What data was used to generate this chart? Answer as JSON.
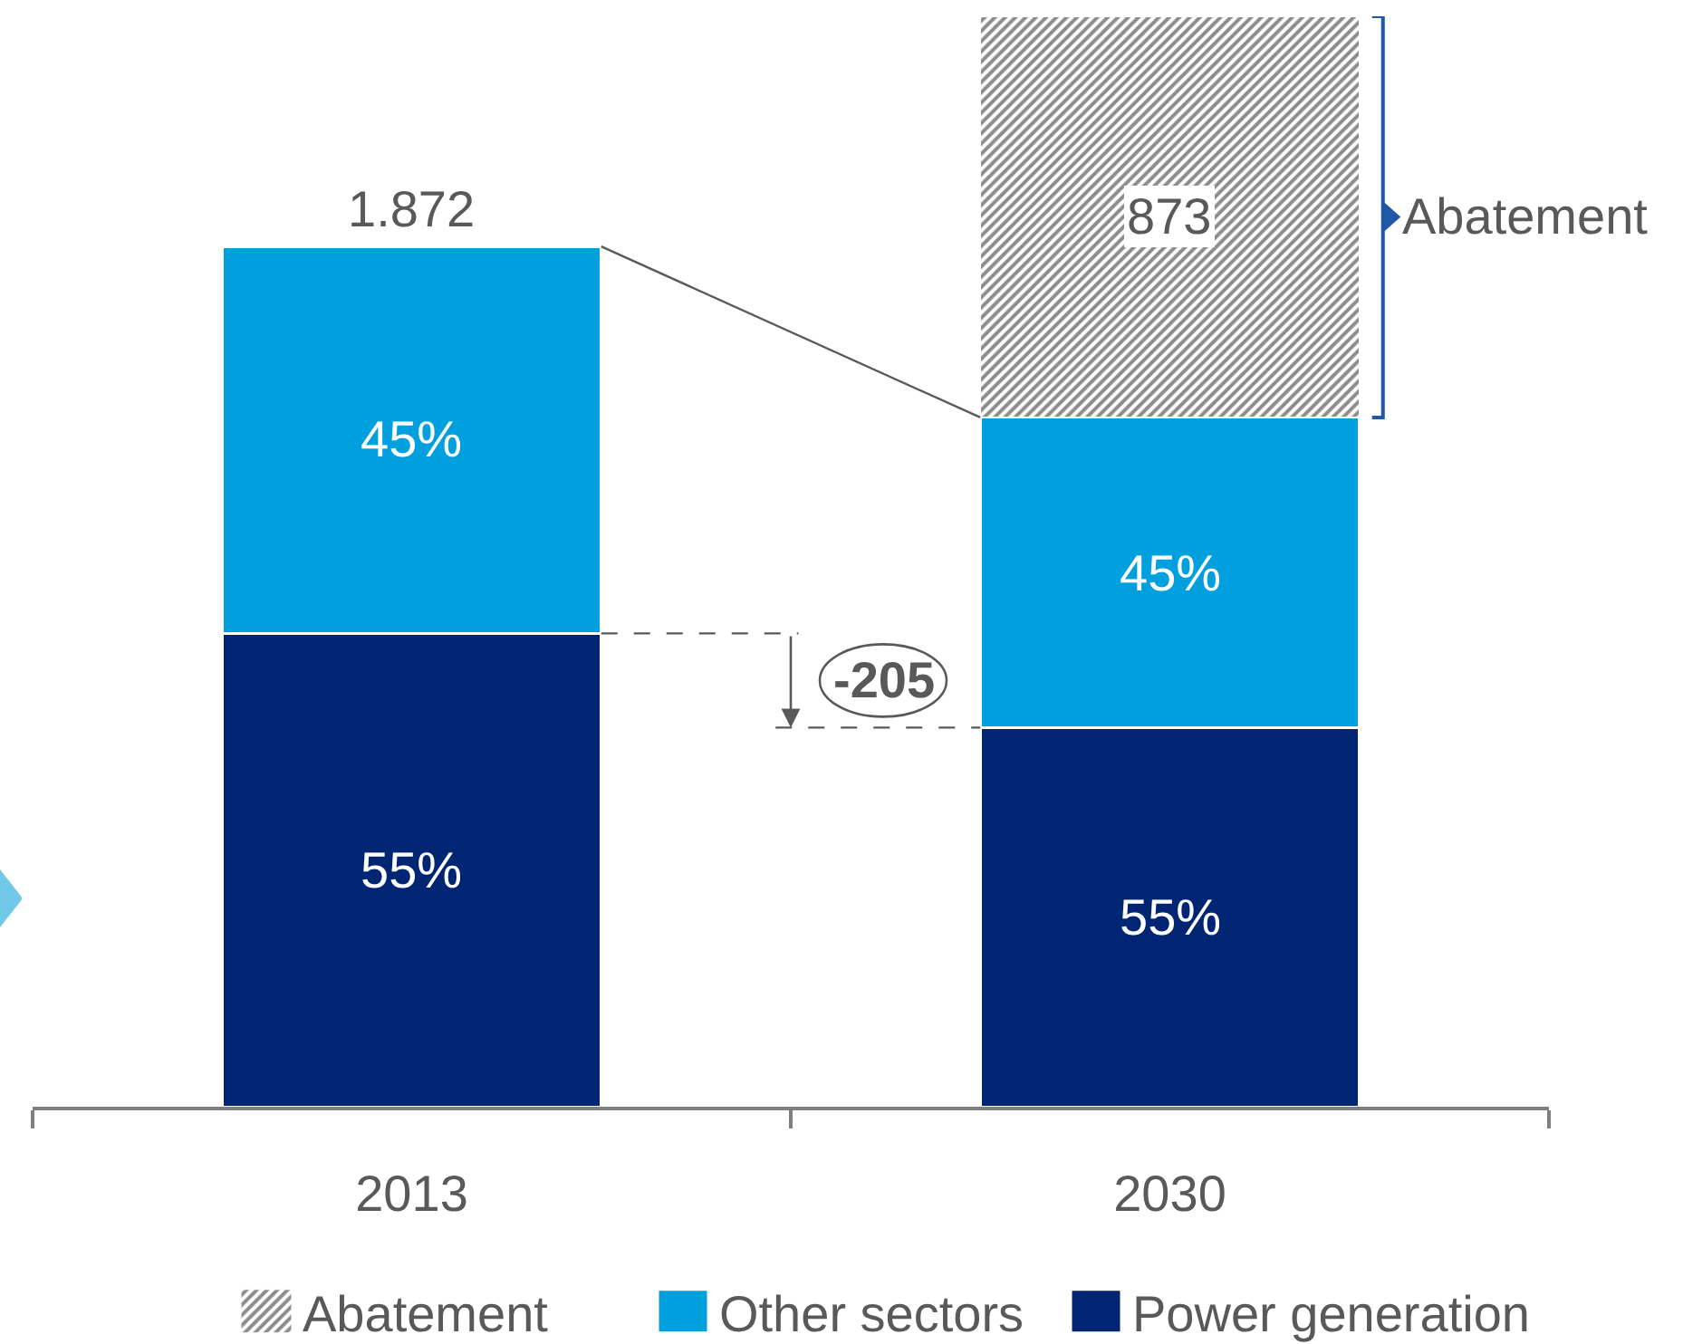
{
  "chart_data": {
    "type": "bar",
    "stacked": true,
    "categories": [
      "2013",
      "2030"
    ],
    "series": [
      {
        "name": "Power generation",
        "color": "#002673",
        "values": [
          1030,
          825
        ]
      },
      {
        "name": "Other sectors",
        "color": "#00a0df",
        "values": [
          842,
          675
        ]
      },
      {
        "name": "Abatement",
        "color": "#ffffff",
        "values": [
          null,
          873
        ],
        "value_labels": [
          null,
          "873"
        ]
      }
    ],
    "totals": [
      "1.872",
      null
    ],
    "annotations": [
      "-205",
      "Abatement",
      "55%",
      "45%",
      "55%",
      "45%"
    ],
    "tick_labels": "x",
    "legend": "bottom"
  }
}
